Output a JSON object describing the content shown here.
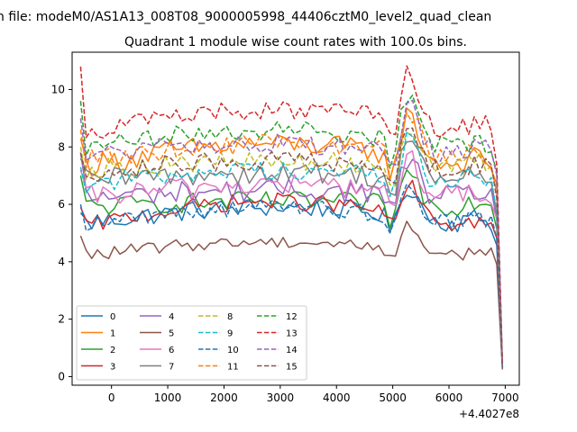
{
  "figure": {
    "suptitle": "n file: modeM0/AS1A13_008T08_9000005998_44406cztM0_level2_quad_clean",
    "title": "Quadrant 1 module wise count rates with 100.0s bins.",
    "offset_label": "+4.4027e8"
  },
  "chart_data": {
    "type": "line",
    "xlabel": "",
    "ylabel": "",
    "xlim": [
      -700,
      7250
    ],
    "ylim": [
      -0.3,
      11.3
    ],
    "x_ticks": [
      0,
      1000,
      2000,
      3000,
      4000,
      5000,
      6000,
      7000
    ],
    "x_tick_labels": [
      "0",
      "1000",
      "2000",
      "3000",
      "4000",
      "5000",
      "6000",
      "7000"
    ],
    "y_ticks": [
      0,
      2,
      4,
      6,
      8,
      10
    ],
    "y_tick_labels": [
      "0",
      "2",
      "4",
      "6",
      "8",
      "10"
    ],
    "x_offset": 440270000,
    "grid": false,
    "legend_placement": "lower-left",
    "legend_columns": 4,
    "x_start": -550,
    "x_step": 100,
    "n_points": 76,
    "series": [
      {
        "name": "0",
        "color": "#1f77b4",
        "dash": "solid",
        "base": 5.3,
        "trend": 0.6,
        "noise": 0.35,
        "endpoint": 0.3,
        "start": 5.7
      },
      {
        "name": "1",
        "color": "#ff7f0e",
        "dash": "solid",
        "base": 7.3,
        "trend": 0.8,
        "noise": 0.4,
        "endpoint": 0.4,
        "start": 8.3
      },
      {
        "name": "2",
        "color": "#2ca02c",
        "dash": "solid",
        "base": 5.9,
        "trend": 0.2,
        "noise": 0.35,
        "endpoint": 0.35,
        "start": 7.0
      },
      {
        "name": "3",
        "color": "#d62728",
        "dash": "solid",
        "base": 5.2,
        "trend": 0.9,
        "noise": 0.3,
        "endpoint": 0.3,
        "start": 5.9
      },
      {
        "name": "4",
        "color": "#9467bd",
        "dash": "solid",
        "base": 6.2,
        "trend": 0.3,
        "noise": 0.4,
        "endpoint": 0.35,
        "start": 7.8
      },
      {
        "name": "5",
        "color": "#8c564b",
        "dash": "solid",
        "base": 4.2,
        "trend": 0.5,
        "noise": 0.22,
        "endpoint": 0.25,
        "start": 4.9
      },
      {
        "name": "6",
        "color": "#e377c2",
        "dash": "solid",
        "base": 6.2,
        "trend": 0.5,
        "noise": 0.4,
        "endpoint": 0.35,
        "start": 7.2
      },
      {
        "name": "7",
        "color": "#7f7f7f",
        "dash": "solid",
        "base": 6.8,
        "trend": 0.3,
        "noise": 0.4,
        "endpoint": 0.35,
        "start": 7.6
      },
      {
        "name": "8",
        "color": "#bcbd22",
        "dash": "dashed",
        "base": 7.2,
        "trend": 0.3,
        "noise": 0.35,
        "endpoint": 0.4,
        "start": 8.0
      },
      {
        "name": "9",
        "color": "#17becf",
        "dash": "dashed",
        "base": 6.7,
        "trend": 0.5,
        "noise": 0.35,
        "endpoint": 0.35,
        "start": 7.3
      },
      {
        "name": "10",
        "color": "#1f77b4",
        "dash": "dashed",
        "base": 5.3,
        "trend": 0.6,
        "noise": 0.3,
        "endpoint": 0.3,
        "start": 6.0
      },
      {
        "name": "11",
        "color": "#ff7f0e",
        "dash": "dashed",
        "base": 7.5,
        "trend": 0.6,
        "noise": 0.35,
        "endpoint": 0.4,
        "start": 8.6
      },
      {
        "name": "12",
        "color": "#2ca02c",
        "dash": "dashed",
        "base": 7.9,
        "trend": 0.7,
        "noise": 0.35,
        "endpoint": 0.4,
        "start": 9.6
      },
      {
        "name": "13",
        "color": "#d62728",
        "dash": "dashed",
        "base": 8.5,
        "trend": 0.8,
        "noise": 0.35,
        "endpoint": 0.45,
        "start": 10.8
      },
      {
        "name": "14",
        "color": "#9467bd",
        "dash": "dashed",
        "base": 7.7,
        "trend": 0.4,
        "noise": 0.35,
        "endpoint": 0.4,
        "start": 9.0
      },
      {
        "name": "15",
        "color": "#8c564b",
        "dash": "dashed",
        "base": 7.1,
        "trend": 0.4,
        "noise": 0.35,
        "endpoint": 0.35,
        "start": 7.8
      }
    ]
  }
}
